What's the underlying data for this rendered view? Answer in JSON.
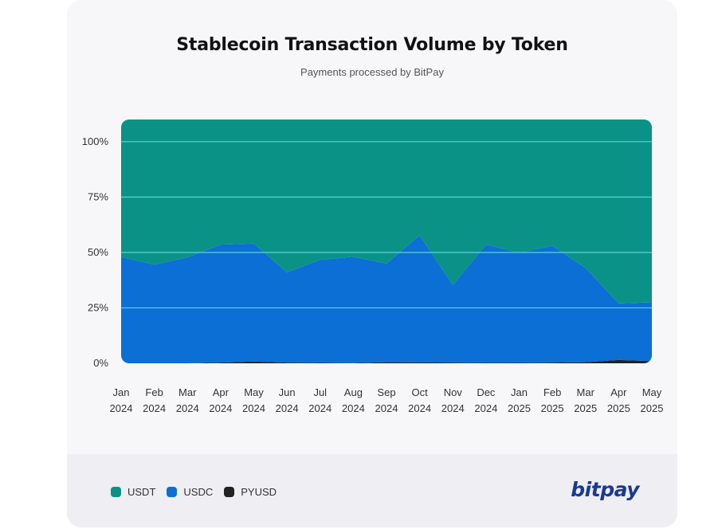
{
  "card": {
    "title": "Stablecoin Transaction Volume by Token",
    "subtitle": "Payments processed by BitPay",
    "brand": "bitpay"
  },
  "colors": {
    "USDT": "#0a9287",
    "USDC": "#0b6fd6",
    "PYUSD": "#222222",
    "gridline": "#5fd0dc"
  },
  "chart_data": {
    "type": "area",
    "stacked": true,
    "title": "Stablecoin Transaction Volume by Token",
    "subtitle": "Payments processed by BitPay",
    "categories": [
      "Jan",
      "Feb",
      "Mar",
      "Apr",
      "May",
      "Jun",
      "Jul",
      "Aug",
      "Sep",
      "Oct",
      "Nov",
      "Dec",
      "Jan",
      "Feb",
      "Mar",
      "Apr",
      "May"
    ],
    "category_years": [
      "2024",
      "2024",
      "2024",
      "2024",
      "2024",
      "2024",
      "2024",
      "2024",
      "2024",
      "2024",
      "2024",
      "2024",
      "2025",
      "2025",
      "2025",
      "2025",
      "2025"
    ],
    "yticks": [
      "0%",
      "25%",
      "50%",
      "75%",
      "100%"
    ],
    "ylim": [
      0,
      110
    ],
    "unit": "%",
    "grid": true,
    "legend_position": "bottom-left",
    "series": [
      {
        "name": "PYUSD",
        "values": [
          0,
          0,
          0,
          0.3,
          0.8,
          0.3,
          0.2,
          0.1,
          0.5,
          0.4,
          0.3,
          0.2,
          0.2,
          0.3,
          0.5,
          1.5,
          1.0
        ]
      },
      {
        "name": "USDC",
        "values": [
          48,
          44.5,
          47.8,
          53.2,
          53.2,
          40.7,
          46.5,
          48.0,
          44.5,
          57.3,
          35.0,
          53.3,
          49.7,
          52.7,
          42.5,
          25.5,
          26.5
        ]
      },
      {
        "name": "USDT",
        "values": [
          62,
          65.5,
          62.2,
          56.5,
          56,
          69,
          63.3,
          61.9,
          65,
          52.3,
          74.7,
          56.5,
          60.1,
          57,
          67,
          83,
          82.5
        ]
      }
    ]
  }
}
